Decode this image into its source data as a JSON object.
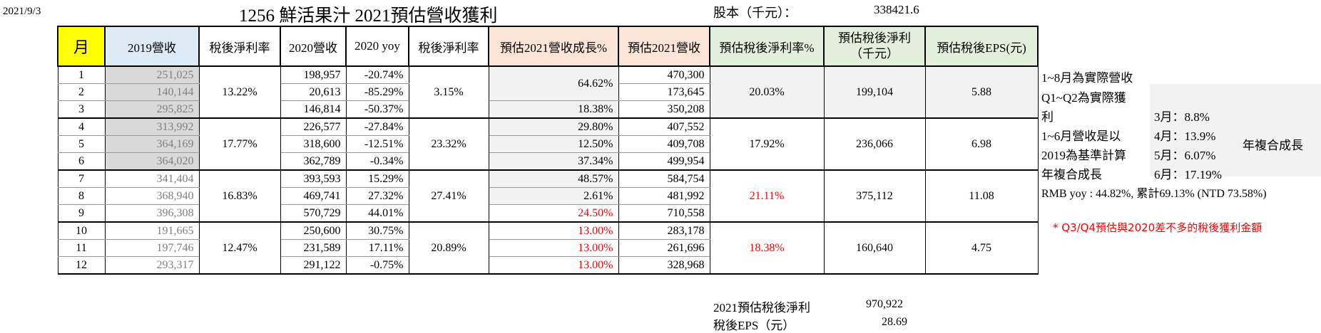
{
  "header": {
    "date": "2021/9/3",
    "title": "1256 鮮活果汁 2021預估營收獲利",
    "capital_label": "股本（千元）：",
    "capital_value": "338421.6"
  },
  "columns": [
    "月",
    "2019營收",
    "稅後淨利率",
    "2020營收",
    "2020 yoy",
    "稅後淨利率",
    "預估2021營收成長%",
    "預估2021營收",
    "預估稅後淨利率%",
    "預估稅後淨利\n（千元）",
    "預估稅後EPS(元)"
  ],
  "rows": [
    {
      "month": "1",
      "rev2019": "251,025",
      "rev2020": "198,957",
      "yoy2020": "-20.74%",
      "rev2021": "470,300"
    },
    {
      "month": "2",
      "rev2019": "140,144",
      "rev2020": "20,613",
      "yoy2020": "-85.29%",
      "rev2021": "173,645"
    },
    {
      "month": "3",
      "rev2019": "295,825",
      "rev2020": "146,814",
      "yoy2020": "-50.37%",
      "growth2021": "18.38%",
      "rev2021": "350,208"
    },
    {
      "month": "4",
      "rev2019": "313,992",
      "rev2020": "226,577",
      "yoy2020": "-27.84%",
      "growth2021": "29.80%",
      "rev2021": "407,552"
    },
    {
      "month": "5",
      "rev2019": "364,169",
      "rev2020": "318,600",
      "yoy2020": "-12.51%",
      "growth2021": "12.50%",
      "rev2021": "409,708"
    },
    {
      "month": "6",
      "rev2019": "364,020",
      "rev2020": "362,789",
      "yoy2020": "-0.34%",
      "growth2021": "37.34%",
      "rev2021": "499,954"
    },
    {
      "month": "7",
      "rev2019": "341,404",
      "rev2020": "393,593",
      "yoy2020": "15.29%",
      "growth2021": "48.57%",
      "rev2021": "584,754"
    },
    {
      "month": "8",
      "rev2019": "368,940",
      "rev2020": "469,741",
      "yoy2020": "27.32%",
      "growth2021": "2.61%",
      "rev2021": "481,992"
    },
    {
      "month": "9",
      "rev2019": "396,308",
      "rev2020": "570,729",
      "yoy2020": "44.01%",
      "growth2021": "24.50%",
      "rev2021": "710,558"
    },
    {
      "month": "10",
      "rev2019": "191,665",
      "rev2020": "250,600",
      "yoy2020": "30.75%",
      "growth2021": "13.00%",
      "rev2021": "283,178"
    },
    {
      "month": "11",
      "rev2019": "197,746",
      "rev2020": "231,589",
      "yoy2020": "17.11%",
      "growth2021": "13.00%",
      "rev2021": "261,696"
    },
    {
      "month": "12",
      "rev2019": "293,317",
      "rev2020": "291,122",
      "yoy2020": "-0.75%",
      "growth2021": "13.00%",
      "rev2021": "328,968"
    }
  ],
  "growth_q1_merged": "64.62%",
  "quarters": [
    {
      "margin2019": "13.22%",
      "margin2020": "3.15%",
      "est_margin": "20.03%",
      "est_profit": "199,104",
      "est_eps": "5.88"
    },
    {
      "margin2019": "17.77%",
      "margin2020": "23.32%",
      "est_margin": "17.92%",
      "est_profit": "236,066",
      "est_eps": "6.98"
    },
    {
      "margin2019": "16.83%",
      "margin2020": "27.41%",
      "est_margin": "21.11%",
      "est_profit": "375,112",
      "est_eps": "11.08"
    },
    {
      "margin2019": "12.47%",
      "margin2020": "20.89%",
      "est_margin": "18.38%",
      "est_profit": "160,640",
      "est_eps": "4.75"
    }
  ],
  "summary": {
    "profit_label": "2021預估稅後淨利",
    "profit_value": "970,922",
    "eps_label": "稅後EPS（元）",
    "eps_value": "28.69"
  },
  "notes": {
    "line1": "1~8月為實際營收",
    "line2": "Q1~Q2為實際獲",
    "line3": "利",
    "line4": "1~6月營收是以",
    "line5": "2019為基準計算",
    "line6": "年複合成長",
    "cagr_title": "年複合成長",
    "cagr_items": [
      "3月：8.8%",
      "4月：13.9%",
      "5月：6.07%",
      "6月：17.19%"
    ],
    "rmb": "RMB yoy : 44.82%, 累計69.13% (NTD 73.58%)",
    "q34_note": "* Q3/Q4預估與2020差不多的稅後獲利金額"
  },
  "colors": {
    "yellow": "#ffff00",
    "light_blue": "#ddebf7",
    "peach": "#fce4d6",
    "light_green": "#e2efda",
    "red": "#ff0000",
    "gray_text": "#808080"
  }
}
